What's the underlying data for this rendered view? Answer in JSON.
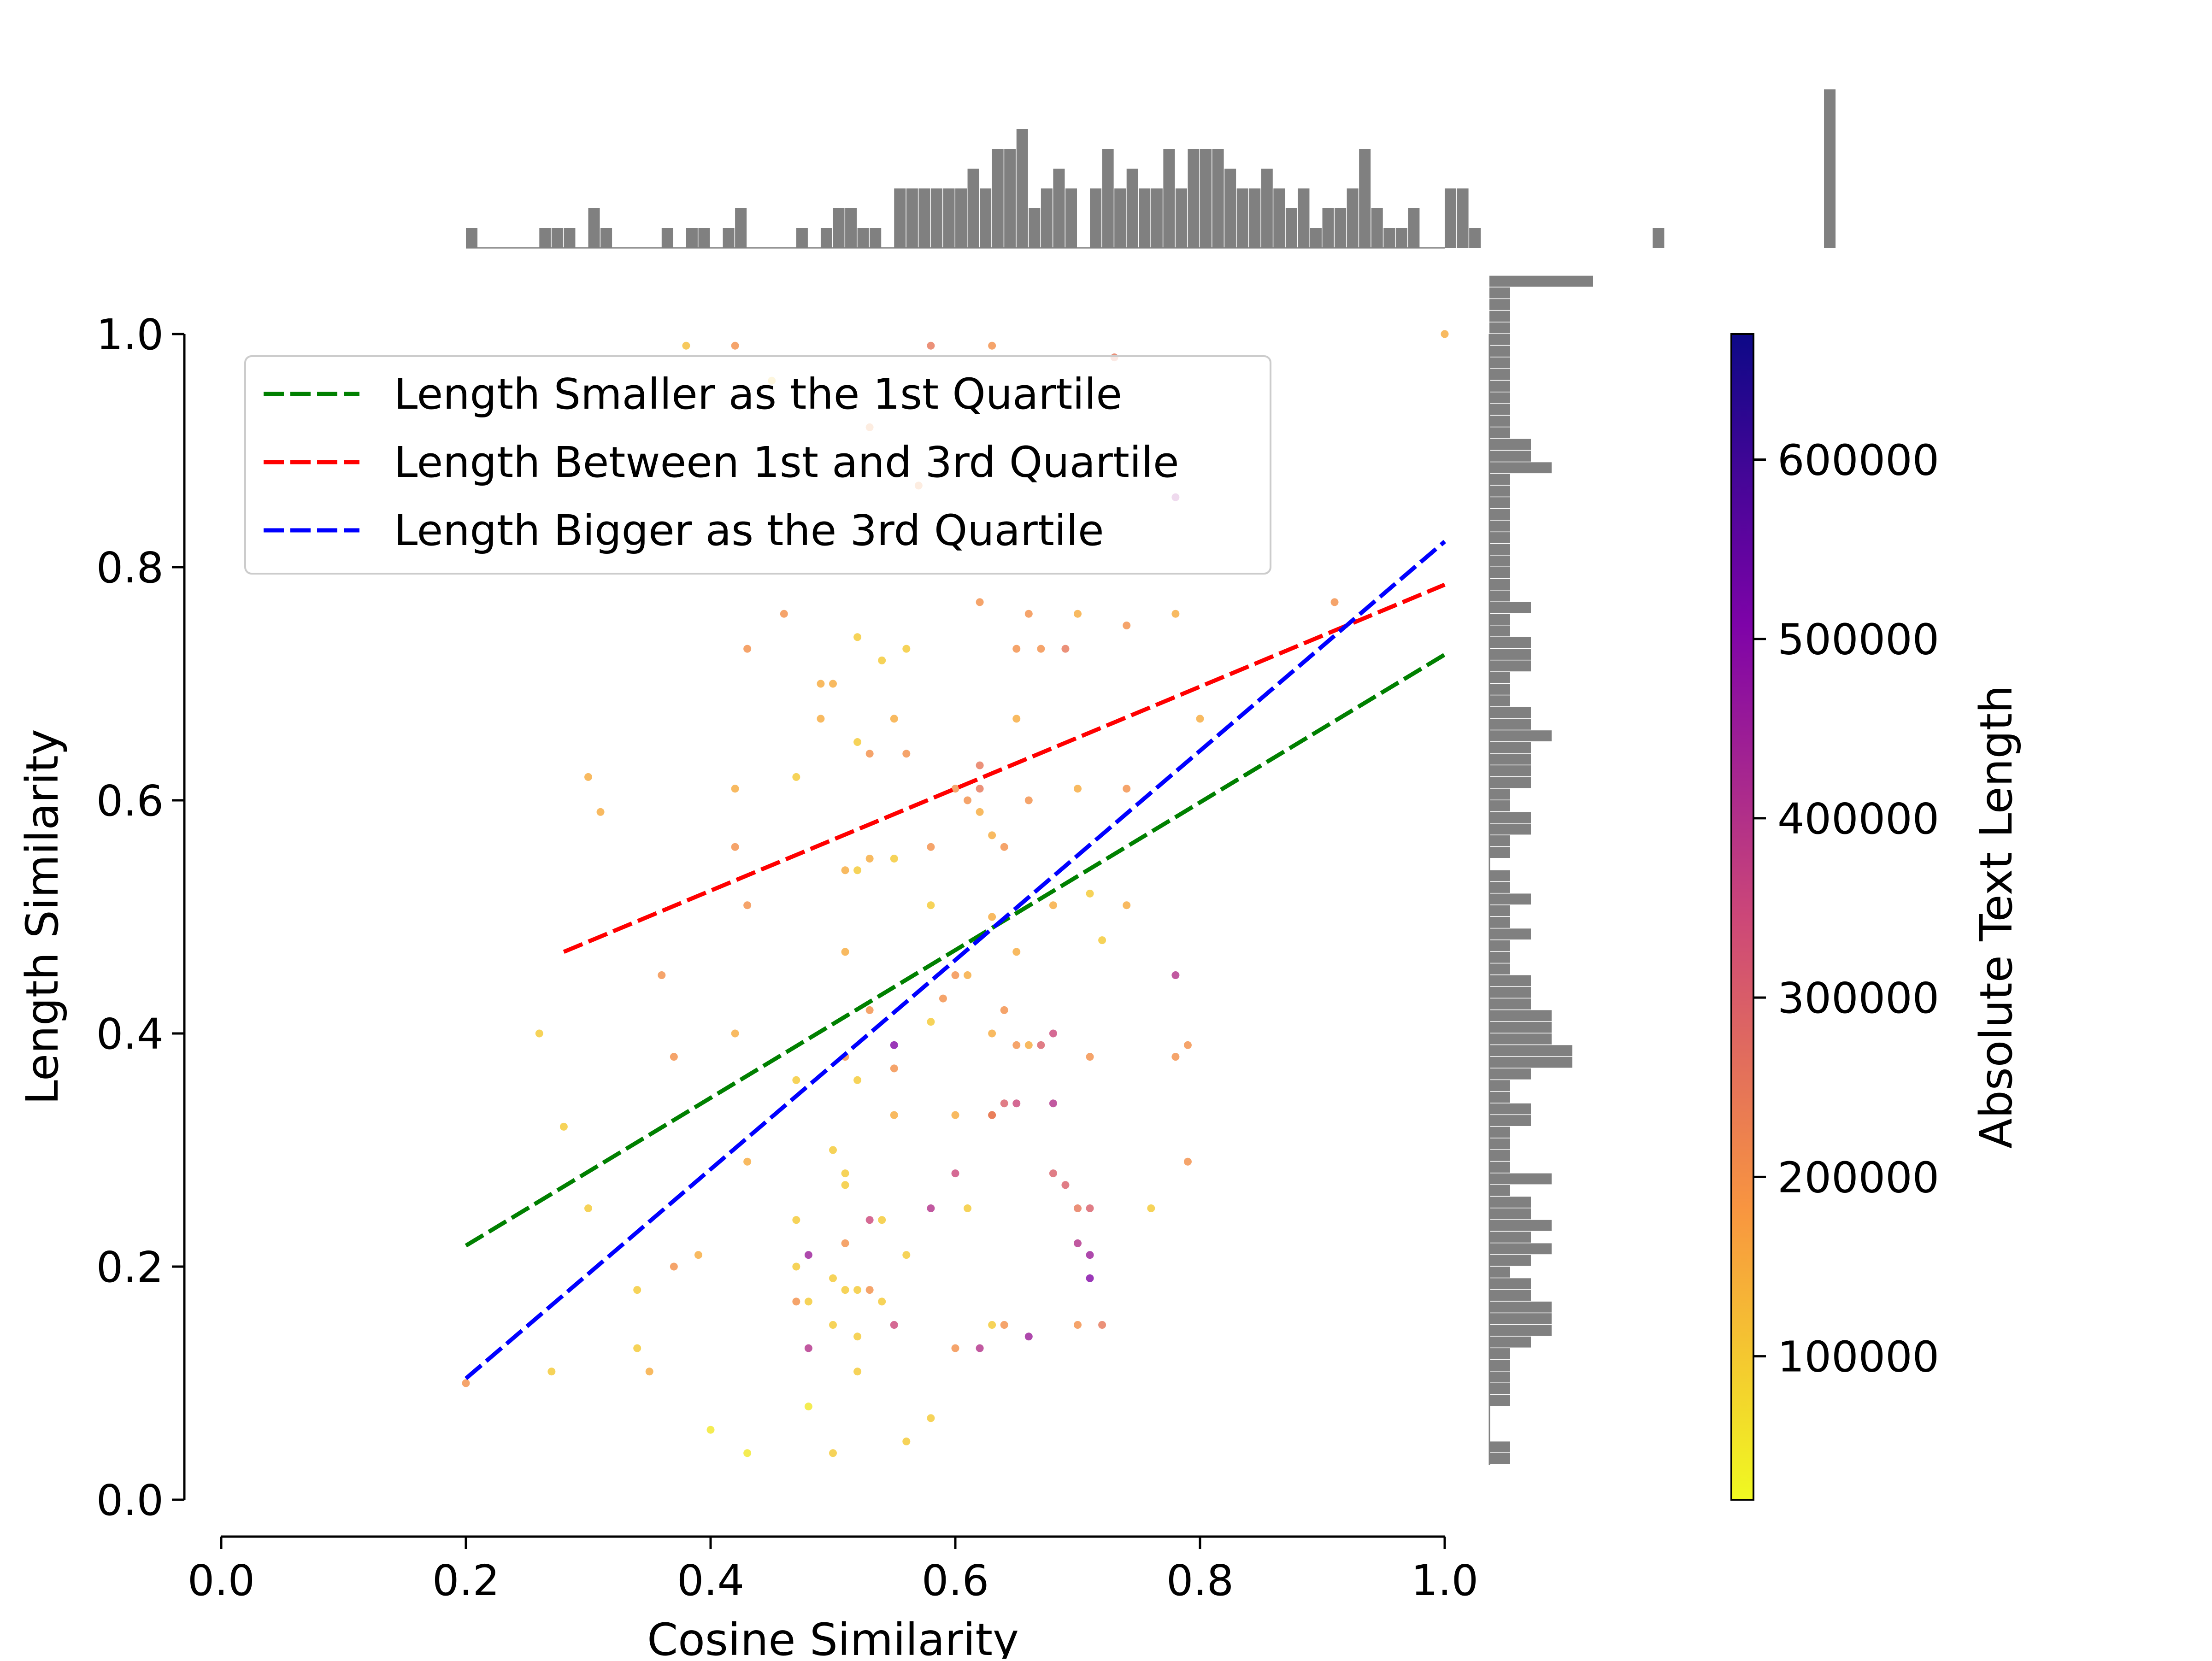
{
  "chart_data": {
    "type": "scatter",
    "title": "",
    "xlabel": "Cosine Similarity",
    "ylabel": "Length Similarity",
    "xlim": [
      0.0,
      1.0
    ],
    "ylim": [
      0.0,
      1.0
    ],
    "x_ticks": [
      "0.0",
      "0.2",
      "0.4",
      "0.6",
      "0.8",
      "1.0"
    ],
    "y_ticks": [
      "0.0",
      "0.2",
      "0.4",
      "0.6",
      "0.8",
      "1.0"
    ],
    "grid": false,
    "legend_position": "top-left",
    "colorbar": {
      "label": "Absolute Text Length",
      "colormap": "plasma_r",
      "range": [
        20000,
        670000
      ],
      "ticks": [
        "100000",
        "200000",
        "300000",
        "400000",
        "500000",
        "600000"
      ]
    },
    "series": [
      {
        "name": "Length Smaller as the 1st Quartile",
        "kind": "regression",
        "color": "#008000",
        "x_range": [
          0.2,
          1.0
        ],
        "y_range": [
          0.218,
          0.725
        ]
      },
      {
        "name": "Length Between 1st and 3rd Quartile",
        "kind": "regression",
        "color": "#ff0000",
        "x_range": [
          0.28,
          1.0
        ],
        "y_range": [
          0.47,
          0.785
        ]
      },
      {
        "name": "Length Bigger as the 3rd Quartile",
        "kind": "regression",
        "color": "#0000ff",
        "x_range": [
          0.2,
          1.0
        ],
        "y_range": [
          0.104,
          0.822
        ]
      }
    ],
    "points": [
      [
        0.38,
        0.99,
        120000
      ],
      [
        0.42,
        0.99,
        200000
      ],
      [
        0.63,
        0.99,
        200000
      ],
      [
        0.58,
        0.99,
        250000
      ],
      [
        0.73,
        0.98,
        250000
      ],
      [
        0.45,
        0.96,
        100000
      ],
      [
        0.53,
        0.92,
        200000
      ],
      [
        0.78,
        0.86,
        450000
      ],
      [
        0.57,
        0.87,
        200000
      ],
      [
        1.0,
        1.0,
        150000
      ],
      [
        0.46,
        0.76,
        200000
      ],
      [
        0.52,
        0.74,
        100000
      ],
      [
        0.43,
        0.73,
        200000
      ],
      [
        0.54,
        0.72,
        100000
      ],
      [
        0.62,
        0.77,
        200000
      ],
      [
        0.66,
        0.76,
        200000
      ],
      [
        0.7,
        0.76,
        150000
      ],
      [
        0.74,
        0.75,
        200000
      ],
      [
        0.78,
        0.76,
        150000
      ],
      [
        0.67,
        0.73,
        200000
      ],
      [
        0.65,
        0.73,
        200000
      ],
      [
        0.69,
        0.73,
        250000
      ],
      [
        0.56,
        0.73,
        100000
      ],
      [
        0.91,
        0.77,
        200000
      ],
      [
        0.49,
        0.7,
        150000
      ],
      [
        0.5,
        0.7,
        150000
      ],
      [
        0.49,
        0.67,
        150000
      ],
      [
        0.52,
        0.65,
        100000
      ],
      [
        0.55,
        0.67,
        150000
      ],
      [
        0.65,
        0.67,
        150000
      ],
      [
        0.47,
        0.62,
        100000
      ],
      [
        0.53,
        0.64,
        200000
      ],
      [
        0.56,
        0.64,
        200000
      ],
      [
        0.62,
        0.63,
        250000
      ],
      [
        0.3,
        0.62,
        150000
      ],
      [
        0.42,
        0.61,
        150000
      ],
      [
        0.6,
        0.61,
        200000
      ],
      [
        0.61,
        0.6,
        200000
      ],
      [
        0.62,
        0.61,
        250000
      ],
      [
        0.7,
        0.61,
        150000
      ],
      [
        0.74,
        0.61,
        200000
      ],
      [
        0.8,
        0.67,
        150000
      ],
      [
        0.31,
        0.59,
        150000
      ],
      [
        0.42,
        0.56,
        200000
      ],
      [
        0.53,
        0.55,
        150000
      ],
      [
        0.55,
        0.55,
        100000
      ],
      [
        0.58,
        0.56,
        200000
      ],
      [
        0.62,
        0.59,
        150000
      ],
      [
        0.63,
        0.57,
        150000
      ],
      [
        0.64,
        0.56,
        200000
      ],
      [
        0.66,
        0.6,
        200000
      ],
      [
        0.51,
        0.54,
        150000
      ],
      [
        0.43,
        0.51,
        200000
      ],
      [
        0.52,
        0.54,
        100000
      ],
      [
        0.58,
        0.51,
        100000
      ],
      [
        0.63,
        0.5,
        150000
      ],
      [
        0.68,
        0.51,
        150000
      ],
      [
        0.71,
        0.52,
        100000
      ],
      [
        0.74,
        0.51,
        150000
      ],
      [
        0.72,
        0.48,
        100000
      ],
      [
        0.51,
        0.47,
        150000
      ],
      [
        0.36,
        0.45,
        200000
      ],
      [
        0.6,
        0.45,
        200000
      ],
      [
        0.61,
        0.45,
        150000
      ],
      [
        0.65,
        0.47,
        150000
      ],
      [
        0.78,
        0.45,
        400000
      ],
      [
        0.26,
        0.4,
        100000
      ],
      [
        0.42,
        0.4,
        150000
      ],
      [
        0.53,
        0.42,
        200000
      ],
      [
        0.58,
        0.41,
        100000
      ],
      [
        0.59,
        0.43,
        200000
      ],
      [
        0.63,
        0.4,
        150000
      ],
      [
        0.64,
        0.42,
        200000
      ],
      [
        0.37,
        0.38,
        200000
      ],
      [
        0.51,
        0.38,
        200000
      ],
      [
        0.55,
        0.39,
        500000
      ],
      [
        0.55,
        0.37,
        200000
      ],
      [
        0.65,
        0.39,
        200000
      ],
      [
        0.66,
        0.39,
        150000
      ],
      [
        0.67,
        0.39,
        300000
      ],
      [
        0.68,
        0.4,
        350000
      ],
      [
        0.71,
        0.38,
        200000
      ],
      [
        0.78,
        0.38,
        200000
      ],
      [
        0.79,
        0.39,
        200000
      ],
      [
        0.28,
        0.32,
        100000
      ],
      [
        0.43,
        0.29,
        150000
      ],
      [
        0.47,
        0.36,
        100000
      ],
      [
        0.52,
        0.36,
        100000
      ],
      [
        0.55,
        0.33,
        150000
      ],
      [
        0.6,
        0.33,
        150000
      ],
      [
        0.63,
        0.33,
        200000
      ],
      [
        0.64,
        0.34,
        300000
      ],
      [
        0.65,
        0.34,
        350000
      ],
      [
        0.68,
        0.34,
        400000
      ],
      [
        0.63,
        0.33,
        250000
      ],
      [
        0.5,
        0.3,
        100000
      ],
      [
        0.51,
        0.28,
        100000
      ],
      [
        0.51,
        0.27,
        100000
      ],
      [
        0.6,
        0.28,
        350000
      ],
      [
        0.68,
        0.28,
        300000
      ],
      [
        0.69,
        0.27,
        300000
      ],
      [
        0.79,
        0.29,
        200000
      ],
      [
        0.3,
        0.25,
        100000
      ],
      [
        0.47,
        0.24,
        100000
      ],
      [
        0.53,
        0.24,
        350000
      ],
      [
        0.54,
        0.24,
        100000
      ],
      [
        0.58,
        0.25,
        400000
      ],
      [
        0.61,
        0.25,
        100000
      ],
      [
        0.7,
        0.25,
        250000
      ],
      [
        0.71,
        0.25,
        300000
      ],
      [
        0.76,
        0.25,
        100000
      ],
      [
        0.51,
        0.22,
        200000
      ],
      [
        0.48,
        0.21,
        450000
      ],
      [
        0.47,
        0.2,
        100000
      ],
      [
        0.5,
        0.19,
        100000
      ],
      [
        0.51,
        0.18,
        100000
      ],
      [
        0.52,
        0.18,
        100000
      ],
      [
        0.53,
        0.18,
        200000
      ],
      [
        0.54,
        0.17,
        100000
      ],
      [
        0.56,
        0.21,
        100000
      ],
      [
        0.7,
        0.22,
        400000
      ],
      [
        0.71,
        0.21,
        450000
      ],
      [
        0.71,
        0.19,
        500000
      ],
      [
        0.34,
        0.18,
        100000
      ],
      [
        0.37,
        0.2,
        200000
      ],
      [
        0.39,
        0.21,
        150000
      ],
      [
        0.48,
        0.17,
        100000
      ],
      [
        0.47,
        0.17,
        200000
      ],
      [
        0.55,
        0.15,
        350000
      ],
      [
        0.5,
        0.15,
        100000
      ],
      [
        0.52,
        0.14,
        100000
      ],
      [
        0.63,
        0.15,
        100000
      ],
      [
        0.64,
        0.15,
        200000
      ],
      [
        0.62,
        0.13,
        400000
      ],
      [
        0.6,
        0.13,
        200000
      ],
      [
        0.66,
        0.14,
        450000
      ],
      [
        0.7,
        0.15,
        200000
      ],
      [
        0.72,
        0.15,
        250000
      ],
      [
        0.34,
        0.13,
        100000
      ],
      [
        0.35,
        0.11,
        150000
      ],
      [
        0.27,
        0.11,
        100000
      ],
      [
        0.48,
        0.13,
        400000
      ],
      [
        0.52,
        0.11,
        100000
      ],
      [
        0.2,
        0.1,
        200000
      ],
      [
        0.4,
        0.06,
        50000
      ],
      [
        0.43,
        0.04,
        50000
      ],
      [
        0.48,
        0.08,
        50000
      ],
      [
        0.5,
        0.04,
        100000
      ],
      [
        0.56,
        0.05,
        100000
      ],
      [
        0.58,
        0.07,
        100000
      ]
    ],
    "hist_x": {
      "bin_start": 0.2,
      "bin_width": 0.01,
      "counts": [
        1,
        0,
        0,
        0,
        0,
        0,
        1,
        1,
        1,
        0,
        2,
        1,
        0,
        0,
        0,
        0,
        1,
        0,
        1,
        1,
        0,
        1,
        2,
        0,
        0,
        0,
        0,
        1,
        0,
        1,
        2,
        2,
        1,
        1,
        0,
        3,
        3,
        3,
        3,
        3,
        3,
        4,
        3,
        5,
        5,
        6,
        2,
        3,
        4,
        3,
        0,
        3,
        5,
        3,
        4,
        3,
        3,
        5,
        3,
        5,
        5,
        5,
        4,
        3,
        3,
        4,
        3,
        2,
        3,
        1,
        2,
        2,
        3,
        5,
        2,
        1,
        1,
        2,
        0,
        0,
        3,
        3,
        1,
        0,
        0,
        0,
        0,
        0,
        0,
        0,
        0,
        0,
        0,
        0,
        0,
        0,
        0,
        1,
        0,
        0,
        0,
        0,
        0,
        0,
        0,
        0,
        0,
        0,
        0,
        0,
        0,
        8
      ]
    },
    "hist_y": {
      "bin_start": 0.03,
      "bin_width": 0.01,
      "counts": [
        1,
        1,
        0,
        0,
        0,
        1,
        1,
        1,
        1,
        1,
        2,
        3,
        3,
        3,
        2,
        2,
        1,
        2,
        3,
        2,
        3,
        2,
        2,
        1,
        3,
        1,
        1,
        1,
        1,
        2,
        2,
        1,
        1,
        2,
        4,
        4,
        3,
        3,
        3,
        2,
        2,
        2,
        1,
        1,
        1,
        2,
        1,
        1,
        2,
        1,
        1,
        0,
        1,
        1,
        2,
        2,
        1,
        1,
        2,
        2,
        2,
        2,
        3,
        2,
        2,
        1,
        1,
        1,
        2,
        2,
        2,
        1,
        1,
        2,
        1,
        1,
        1,
        1,
        1,
        1,
        1,
        1,
        1,
        1,
        1,
        3,
        2,
        2,
        1,
        1,
        1,
        1,
        1,
        1,
        1,
        1,
        1,
        1,
        1,
        1,
        1,
        5
      ]
    }
  }
}
